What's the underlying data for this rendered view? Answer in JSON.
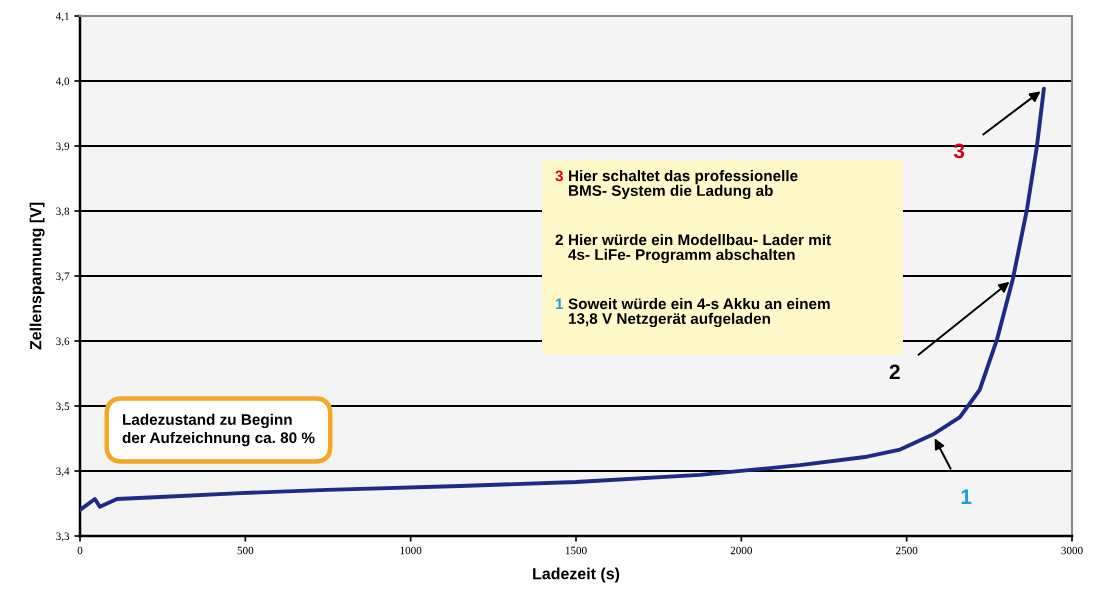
{
  "chart_data": {
    "type": "line",
    "xlabel": "Ladezeit (s)",
    "ylabel": "Zellenspannung [V]",
    "x": [
      0,
      45,
      60,
      112,
      242,
      484,
      747,
      1149,
      1500,
      1875,
      2177,
      2380,
      2480,
      2579,
      2661,
      2721,
      2773,
      2821,
      2864,
      2894,
      2915
    ],
    "series": [
      {
        "color": "#1f2a87",
        "values": [
          3.34,
          3.357,
          3.345,
          3.357,
          3.36,
          3.366,
          3.371,
          3.377,
          3.383,
          3.394,
          3.409,
          3.422,
          3.433,
          3.456,
          3.483,
          3.525,
          3.602,
          3.695,
          3.803,
          3.9,
          3.988
        ]
      }
    ],
    "xlim": [
      0,
      3000
    ],
    "xticks": [
      0,
      500,
      1000,
      1500,
      2000,
      2500,
      3000
    ],
    "ylim": [
      3.3,
      4.1
    ],
    "yticks": [
      {
        "value": 3.3,
        "label": "3,3"
      },
      {
        "value": 3.4,
        "label": "3,4"
      },
      {
        "value": 3.5,
        "label": "3,5"
      },
      {
        "value": 3.6,
        "label": "3,6"
      },
      {
        "value": 3.7,
        "label": "3,7"
      },
      {
        "value": 3.8,
        "label": "3,8"
      },
      {
        "value": 3.9,
        "label": "3,9"
      },
      {
        "value": 4.0,
        "label": "4,0"
      },
      {
        "value": 4.1,
        "label": "4,1"
      }
    ],
    "grid": "y",
    "marker": "none",
    "line_style": "solid",
    "annotations": [
      {
        "text": "3",
        "x": 2915,
        "y": 3.988
      },
      {
        "text": "2",
        "x": 2821,
        "y": 3.695
      },
      {
        "text": "1",
        "x": 2579,
        "y": 3.456
      },
      "3 Hier schaltet das professionelle\nBMS- System die Ladung ab",
      "2 Hier würde ein Modellbau- Lader mit\n4s- LiFe- Programm abschalten",
      "1 Soweit würde ein 4-s Akku an einem\n13,8 V Netzgerät aufgeladen",
      "Ladezustand zu Beginn\nder Aufzeichnung ca. 80 %"
    ]
  }
}
